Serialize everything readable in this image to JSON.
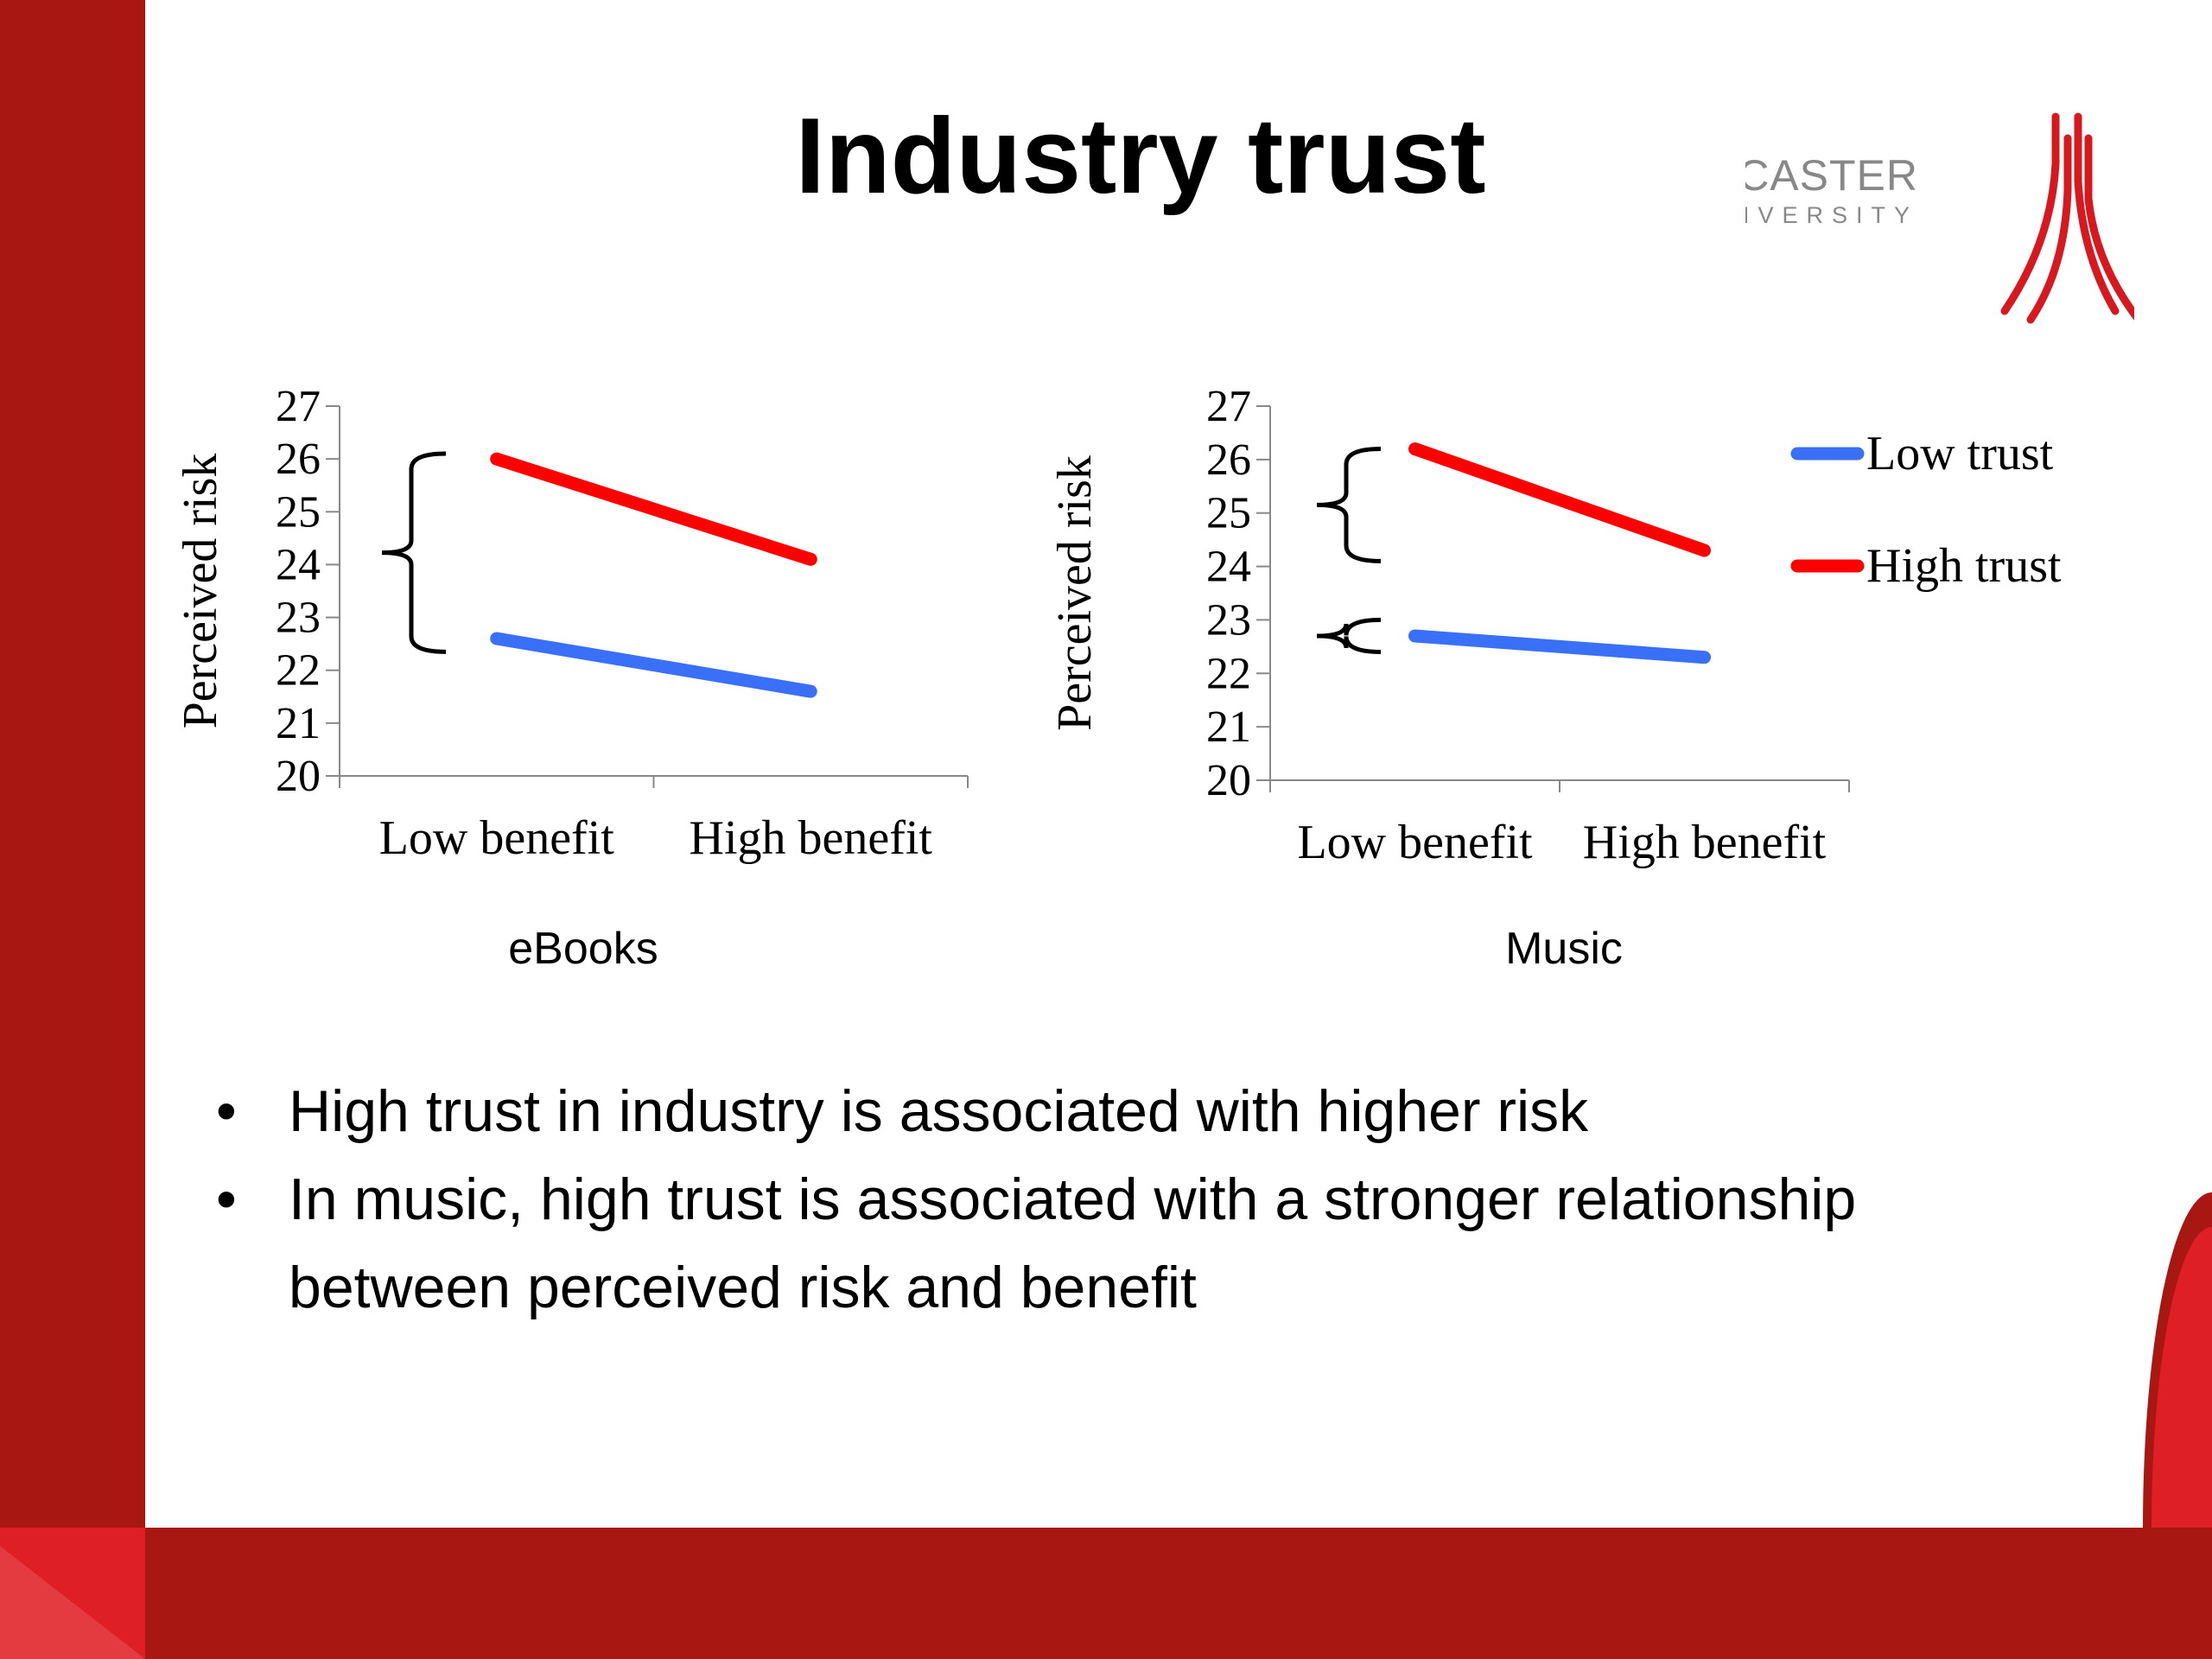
{
  "slide": {
    "title": "Industry trust",
    "logo": {
      "name": "LANCASTER",
      "subname": "UNIVERSITY"
    },
    "bullets": [
      "High trust in industry is associated with higher risk",
      "In music, high trust is associated with a stronger relationship between perceived risk and benefit"
    ],
    "colors": {
      "band": "#a81712",
      "accent": "#de1f26",
      "low_trust": "#3a6ff7",
      "high_trust": "#ff0000"
    }
  },
  "chart_data": [
    {
      "type": "line",
      "caption": "eBooks",
      "categories": [
        "Low benefit",
        "High benefit"
      ],
      "ylabel": "Perceived risk",
      "ylim": [
        20,
        27
      ],
      "yticks": [
        "20",
        "21",
        "22",
        "23",
        "24",
        "25",
        "26",
        "27"
      ],
      "series": [
        {
          "name": "Low trust",
          "values": [
            22.6,
            21.6
          ]
        },
        {
          "name": "High trust",
          "values": [
            26.0,
            24.1
          ]
        }
      ],
      "legend": "none",
      "grid": false
    },
    {
      "type": "line",
      "caption": "Music",
      "categories": [
        "Low benefit",
        "High benefit"
      ],
      "ylabel": "Perceived risk",
      "ylim": [
        20,
        27
      ],
      "yticks": [
        "20",
        "21",
        "22",
        "23",
        "24",
        "25",
        "26",
        "27"
      ],
      "series": [
        {
          "name": "Low trust",
          "values": [
            22.7,
            22.3
          ]
        },
        {
          "name": "High trust",
          "values": [
            26.2,
            24.3
          ]
        }
      ],
      "legend": "right",
      "grid": false
    }
  ]
}
